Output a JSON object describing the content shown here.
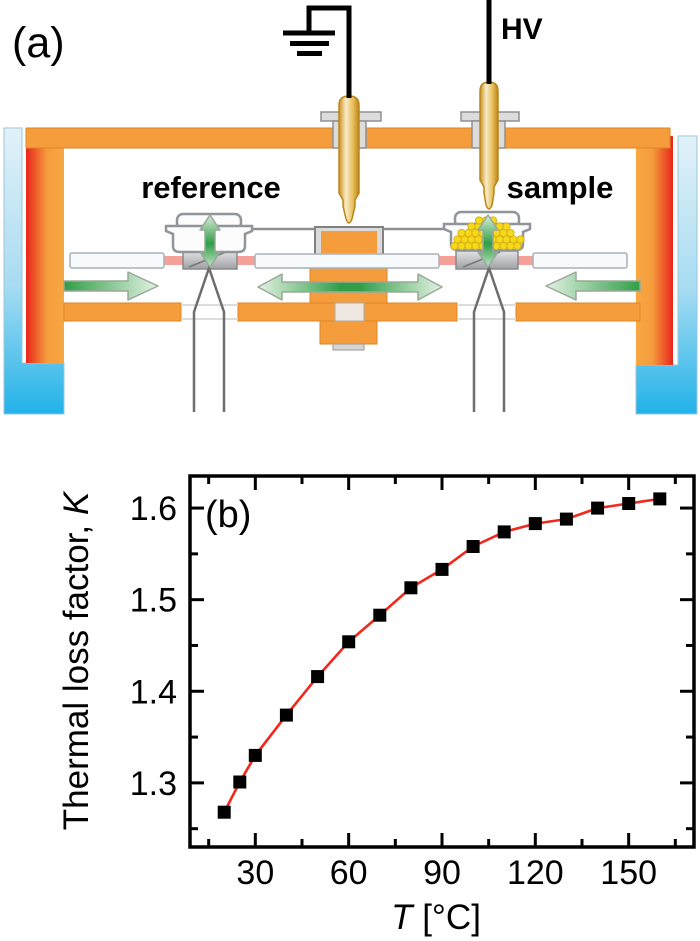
{
  "figure": {
    "panel_a": {
      "label": "(a)",
      "reference_label": "reference",
      "sample_label": "sample",
      "hv_label": "HV",
      "icons": [
        "ground-symbol-icon",
        "hv-electrode-icon",
        "ground-electrode-icon",
        "reference-pan-icon",
        "sample-pan-icon",
        "thermocouple-icon",
        "heat-flow-arrow-icon"
      ],
      "colors": {
        "furnace_orange": "#F59C3D",
        "furnace_orange_edge": "#DE8622",
        "hot_red": "#E8251A",
        "coolant_blue_light": "#DFF0F8",
        "coolant_blue": "#29B5E8",
        "electrode_gold_light": "#F8ECC8",
        "electrode_gold_dark": "#CE9020",
        "arrow_green": "#2F9E46",
        "arrow_green_pale": "#E4F2E4",
        "sample_yellow": "#F6D91A",
        "rod_white": "#F7FAFC",
        "rod_pink": "#F5A098",
        "metal_gray": "#C9C9CC",
        "outline_gray": "#8F959B",
        "wire_black": "#000000"
      }
    },
    "panel_b": {
      "label": "(b)"
    }
  },
  "chart_data": {
    "type": "line",
    "title": "",
    "xlabel_var": "T",
    "xlabel_unit": " [°C]",
    "ylabel_text": "Thermal loss factor, ",
    "ylabel_var": "K",
    "x": [
      20,
      25,
      30,
      40,
      50,
      60,
      70,
      80,
      90,
      100,
      110,
      120,
      130,
      140,
      150,
      160
    ],
    "y": [
      1.268,
      1.301,
      1.33,
      1.374,
      1.416,
      1.454,
      1.483,
      1.513,
      1.533,
      1.558,
      1.574,
      1.583,
      1.588,
      1.6,
      1.605,
      1.61
    ],
    "xlim": [
      9,
      171
    ],
    "ylim": [
      1.23,
      1.635
    ],
    "xticks": [
      30,
      60,
      90,
      120,
      150
    ],
    "yticks": [
      1.3,
      1.4,
      1.5,
      1.6
    ],
    "xticks_minor": [
      15,
      45,
      75,
      105,
      135,
      165
    ],
    "yticks_minor": [
      1.25,
      1.35,
      1.45,
      1.55
    ],
    "grid": false,
    "legend": null,
    "marker": "square",
    "marker_color": "#000000",
    "line_color": "#F3281C"
  }
}
